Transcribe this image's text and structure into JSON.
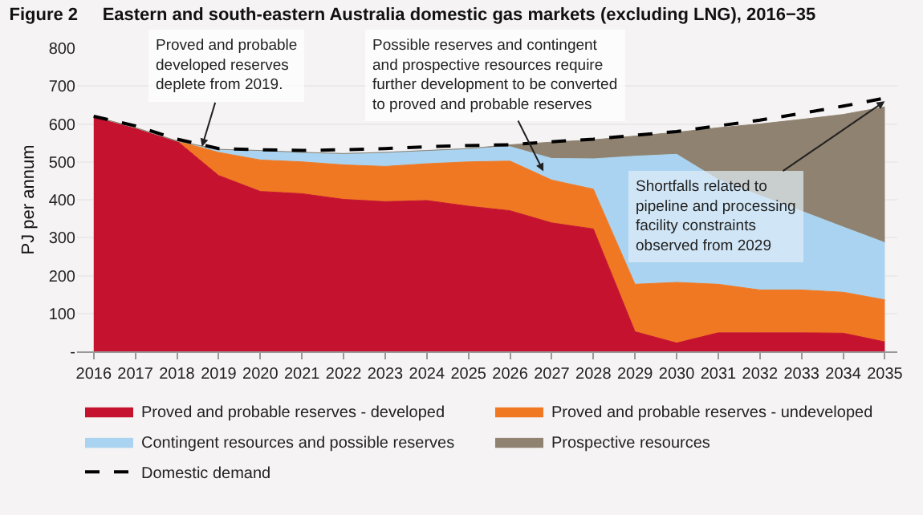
{
  "chart_data": {
    "type": "area",
    "stacked": true,
    "title": "Figure 2     Eastern and south-eastern Australia domestic gas markets (excluding LNG), 2016−35",
    "ylabel": "PJ per annum",
    "x": [
      2016,
      2017,
      2018,
      2019,
      2020,
      2021,
      2022,
      2023,
      2024,
      2025,
      2026,
      2027,
      2028,
      2029,
      2030,
      2031,
      2032,
      2033,
      2034,
      2035
    ],
    "xlim": [
      2015.6,
      2035.3
    ],
    "xticks": [
      2016,
      2017,
      2018,
      2019,
      2020,
      2021,
      2022,
      2023,
      2024,
      2025,
      2026,
      2027,
      2028,
      2029,
      2030,
      2031,
      2032,
      2033,
      2034,
      2035
    ],
    "ylim": [
      0,
      800
    ],
    "yticks": [
      {
        "value": 0,
        "label": "-"
      },
      100,
      200,
      300,
      400,
      500,
      600,
      700,
      800
    ],
    "grid": "y",
    "legend": "bottom",
    "series": [
      {
        "name": "Proved and probable reserves - developed",
        "color": "#c4122f",
        "values": [
          620,
          590,
          555,
          464,
          422,
          416,
          401,
          395,
          398,
          383,
          371,
          339,
          323,
          52,
          22,
          49,
          49,
          49,
          48,
          25
        ]
      },
      {
        "name": "Proved and probable reserves - undeveloped",
        "color": "#f07822",
        "values": [
          0,
          0,
          0,
          61,
          83,
          84,
          91,
          93,
          97,
          117,
          131,
          113,
          105,
          125,
          160,
          128,
          113,
          113,
          108,
          111
        ]
      },
      {
        "name": "Contingent resources and possible reserves",
        "color": "#a9d3f0",
        "values": [
          0,
          0,
          0,
          8,
          25,
          25,
          30,
          37,
          35,
          35,
          38,
          57,
          80,
          338,
          338,
          276,
          249,
          208,
          172,
          151
        ]
      },
      {
        "name": "Prospective resources",
        "color": "#8f8270",
        "values": [
          0,
          0,
          0,
          0,
          0,
          0,
          0,
          0,
          0,
          0,
          5,
          43,
          50,
          53,
          58,
          137,
          189,
          242,
          297,
          358
        ]
      },
      {
        "name": "Domestic demand",
        "type": "line",
        "color": "#000000",
        "line_style": "dashed",
        "values": [
          620,
          595,
          560,
          535,
          532,
          530,
          532,
          535,
          540,
          543,
          545,
          553,
          560,
          570,
          580,
          595,
          610,
          628,
          647,
          668
        ]
      }
    ],
    "annotations": [
      {
        "text": "Proved and probable\ndeveloped reserves\ndeplete from 2019.",
        "x": 2018.6,
        "y": 540
      },
      {
        "text": "Possible reserves and contingent\nand prospective resources require\nfurther development to be converted\nto proved and probable reserves",
        "x": 2026.8,
        "y": 475
      },
      {
        "text": "Shortfalls related to\npipeline and processing\nfacility constraints\nobserved from 2029",
        "x": 2035,
        "y": 660
      }
    ]
  }
}
